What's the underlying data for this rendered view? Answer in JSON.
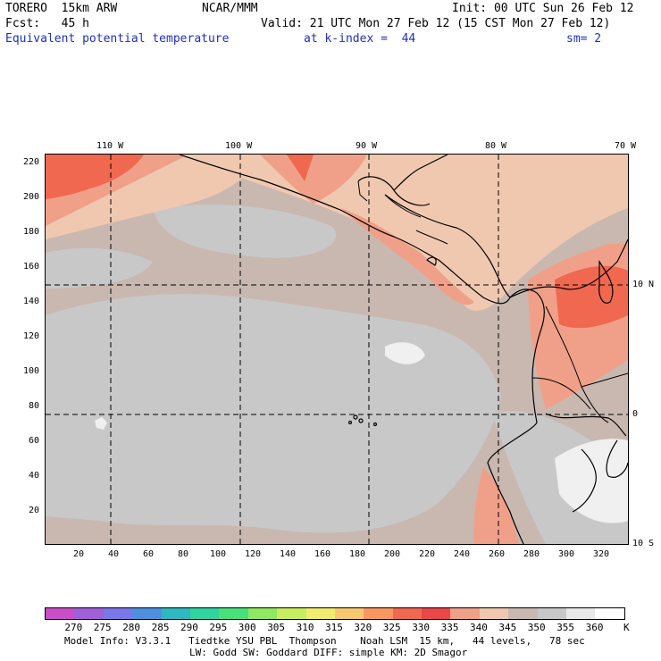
{
  "header": {
    "model": "TORERO  15km ARW",
    "org": "NCAR/MMM",
    "init": "Init: 00 UTC Sun 26 Feb 12",
    "fcst": "Fcst:   45 h",
    "valid": "Valid: 21 UTC Mon 27 Feb 12 (15 CST Mon 27 Feb 12)",
    "field": "Equivalent potential temperature",
    "level": "at k-index =  44",
    "smooth": "sm= 2"
  },
  "axes": {
    "lon_labels": [
      "110 W",
      "100 W",
      "90 W",
      "80 W",
      "70 W"
    ],
    "lat_labels": [
      "10 N",
      "0",
      "10 S"
    ],
    "y_ticks": [
      "220",
      "200",
      "180",
      "160",
      "140",
      "120",
      "100",
      "80",
      "60",
      "40",
      "20"
    ],
    "x_ticks": [
      "20",
      "40",
      "60",
      "80",
      "100",
      "120",
      "140",
      "160",
      "180",
      "200",
      "220",
      "240",
      "260",
      "280",
      "300",
      "320"
    ]
  },
  "colorbar": {
    "labels": [
      "270",
      "275",
      "280",
      "285",
      "290",
      "295",
      "300",
      "305",
      "310",
      "315",
      "320",
      "325",
      "330",
      "335",
      "340",
      "345",
      "350",
      "355",
      "360"
    ],
    "unit": "K",
    "colors": [
      "#c84fc8",
      "#a060d8",
      "#7a78e8",
      "#4f8fe0",
      "#2fb8c0",
      "#30d4a0",
      "#48e07a",
      "#90e860",
      "#c8ee60",
      "#f0ec70",
      "#f8c870",
      "#f89860",
      "#f06850",
      "#e84848",
      "#f0a088",
      "#f0c8b0",
      "#c8b8b0",
      "#c8c8c8",
      "#e8e8e8",
      "#ffffff"
    ]
  },
  "footer": {
    "line1": "Model Info: V3.3.1   Tiedtke YSU PBL  Thompson    Noah LSM  15 km,   44 levels,   78 sec",
    "line2": "LW: Godd SW: Goddard DIFF: simple KM: 2D Smagor"
  }
}
